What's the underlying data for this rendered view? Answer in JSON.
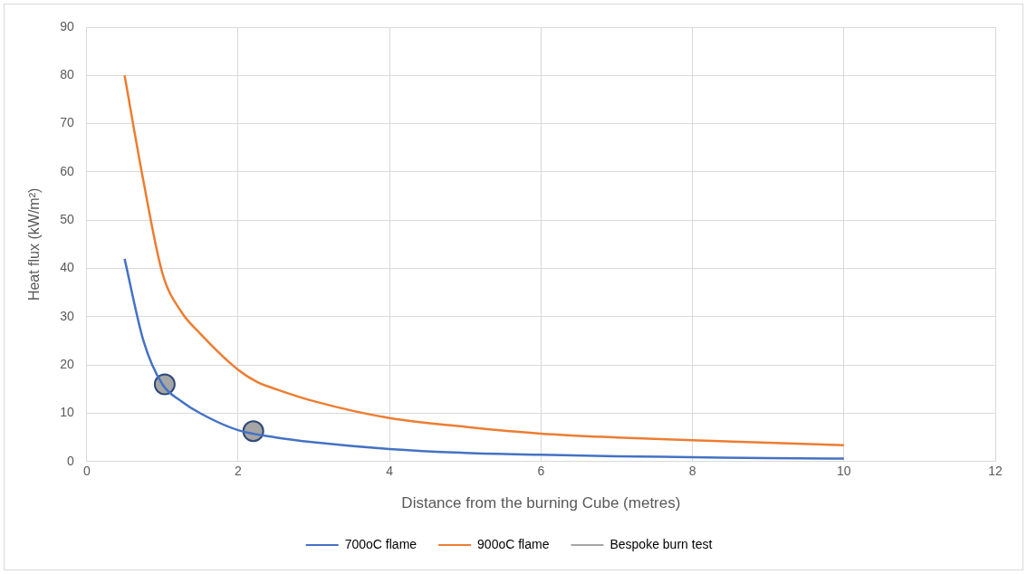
{
  "chart_data": {
    "type": "line",
    "xlabel": "Distance from the burning Cube (metres)",
    "ylabel": "Heat flux (kW/m²)",
    "xlim": [
      0,
      12
    ],
    "xticks": [
      0,
      2,
      4,
      6,
      8,
      10,
      12
    ],
    "ylim": [
      0,
      90
    ],
    "yticks": [
      0,
      10,
      20,
      30,
      40,
      50,
      60,
      70,
      80,
      90
    ],
    "grid": true,
    "legend": "bottom",
    "line_style": "solid",
    "series": [
      {
        "name": "700oC flame",
        "color": "#4472c4",
        "marker": "none",
        "x": [
          0.5,
          0.75,
          1,
          1.25,
          1.5,
          2,
          2.5,
          3,
          4,
          5,
          6,
          7,
          8,
          9,
          10
        ],
        "values": [
          42,
          25,
          16,
          12.5,
          10,
          6.5,
          5,
          4,
          2.6,
          1.8,
          1.4,
          1.1,
          0.9,
          0.7,
          0.6
        ]
      },
      {
        "name": "900oC flame",
        "color": "#ed7d31",
        "marker": "none",
        "x": [
          0.5,
          0.75,
          1,
          1.25,
          1.5,
          2,
          2.25,
          2.5,
          3,
          4,
          5,
          6,
          7,
          8,
          9,
          10
        ],
        "values": [
          80,
          58,
          39,
          31,
          26.5,
          19,
          16.5,
          15,
          12.5,
          9,
          7.2,
          5.8,
          5,
          4.4,
          3.9,
          3.4
        ]
      },
      {
        "name": "Bespoke burn test",
        "type": "scatter",
        "color": "#a5a5a5",
        "marker": "circle",
        "x": [
          1.03,
          2.2
        ],
        "values": [
          16,
          6.3
        ]
      }
    ]
  }
}
